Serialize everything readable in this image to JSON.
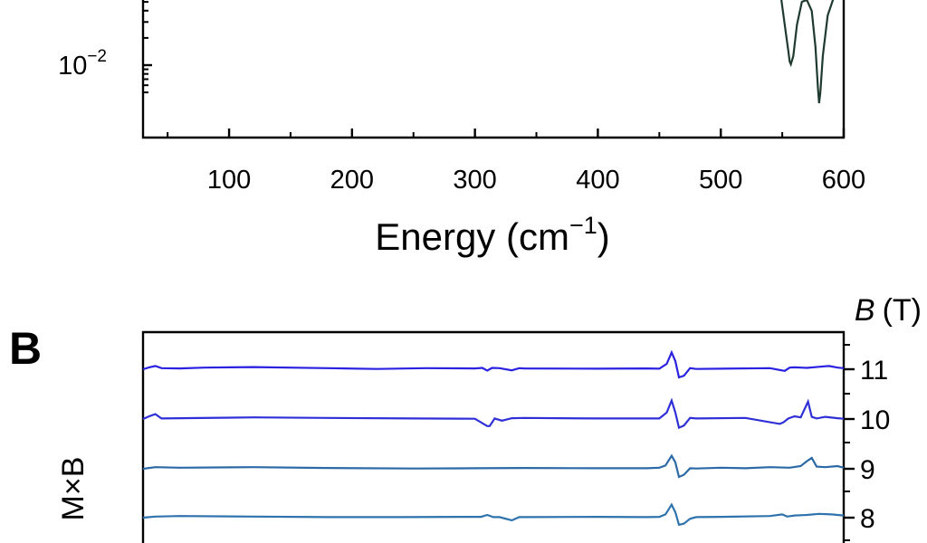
{
  "chart_data": [
    {
      "type": "line",
      "panel_label": "",
      "xlabel_main": "Energy (cm",
      "xlabel_sup": "−1",
      "xlabel_close": ")",
      "xlim": [
        30,
        600
      ],
      "x_tick_values": [
        100,
        200,
        300,
        400,
        500,
        600
      ],
      "x_tick_labels": [
        "100",
        "200",
        "300",
        "400",
        "500",
        "600"
      ],
      "y_scale": "log",
      "y_tick_base": "10",
      "y_tick_exp": "−2",
      "line_color": "#1f3a2e",
      "series": [
        {
          "x": [
            548,
            552,
            555,
            556,
            557,
            559,
            562,
            566,
            570,
            574,
            577,
            579,
            580,
            581,
            583,
            587,
            592,
            596,
            600
          ],
          "y_log10": [
            -1.15,
            -1.55,
            -1.85,
            -1.96,
            -1.99,
            -1.9,
            -1.55,
            -1.3,
            -1.28,
            -1.4,
            -1.8,
            -2.25,
            -2.42,
            -2.3,
            -1.9,
            -1.45,
            -1.25,
            -1.18,
            -1.15
          ]
        }
      ]
    },
    {
      "type": "line",
      "panel_label": "B",
      "xlim": [
        30,
        600
      ],
      "right_axis_title_symbol": "B",
      "right_axis_title_unit": "(T)",
      "left_label_partial": "M×B",
      "series": [
        {
          "name": "11",
          "color": "#2a22e0",
          "x": [
            30,
            35,
            40,
            45,
            60,
            80,
            120,
            180,
            220,
            260,
            300,
            306,
            310,
            314,
            320,
            330,
            336,
            340,
            400,
            440,
            450,
            456,
            460,
            463,
            466,
            470,
            475,
            480,
            500,
            540,
            552,
            556,
            560,
            570,
            580,
            588,
            595,
            600
          ],
          "y": [
            0,
            0.35,
            0.6,
            0.2,
            0.15,
            0.3,
            0.4,
            0.2,
            0.05,
            0.2,
            0.15,
            0.25,
            -0.25,
            0.25,
            0.2,
            -0.2,
            0.2,
            0.15,
            0.1,
            0.15,
            0.1,
            1.0,
            3.1,
            1.5,
            -1.5,
            -1.2,
            0.2,
            0.05,
            0.1,
            0.2,
            -0.3,
            0.3,
            0.35,
            0.25,
            0.45,
            0.6,
            0.3,
            0.2
          ]
        },
        {
          "name": "10",
          "color": "#2f2fd8",
          "x": [
            30,
            35,
            40,
            45,
            60,
            120,
            180,
            250,
            300,
            310,
            312,
            316,
            322,
            330,
            340,
            400,
            440,
            450,
            456,
            460,
            463,
            466,
            470,
            475,
            480,
            520,
            548,
            551,
            555,
            560,
            565,
            571,
            574,
            578,
            585,
            595,
            600
          ],
          "y": [
            0,
            0.5,
            0.9,
            0.1,
            0.15,
            0.3,
            0.2,
            0.1,
            0.05,
            -1.3,
            -1.3,
            0.1,
            -0.3,
            0.15,
            0.2,
            0.1,
            0.1,
            0.1,
            1.2,
            3.4,
            1.2,
            -1.6,
            -1.2,
            0.2,
            0.1,
            0.2,
            -0.9,
            -0.6,
            0.1,
            0.5,
            0.3,
            3.2,
            0.4,
            0.1,
            0.4,
            0.15,
            0.05
          ]
        },
        {
          "name": "9",
          "color": "#2b6aa6",
          "x": [
            30,
            40,
            60,
            120,
            180,
            250,
            300,
            340,
            400,
            440,
            450,
            455,
            460,
            463,
            466,
            470,
            475,
            480,
            500,
            520,
            540,
            556,
            565,
            570,
            574,
            578,
            585,
            595,
            600
          ],
          "y": [
            0,
            0.3,
            0.2,
            0.3,
            0.15,
            0.05,
            0.1,
            0.15,
            0.1,
            0.1,
            0.2,
            0.6,
            2.4,
            1.2,
            -1.5,
            -1.1,
            0.1,
            0.05,
            0.2,
            0.1,
            0.3,
            0.2,
            0.5,
            1.4,
            2.0,
            0.4,
            0.3,
            0.5,
            0.2
          ]
        },
        {
          "name": "8",
          "color": "#2e73ad",
          "x": [
            30,
            40,
            60,
            120,
            180,
            240,
            290,
            305,
            310,
            315,
            320,
            330,
            336,
            340,
            400,
            440,
            450,
            455,
            460,
            463,
            466,
            470,
            475,
            480,
            500,
            540,
            550,
            554,
            560,
            570,
            580,
            590,
            600
          ],
          "y": [
            0,
            0.2,
            0.3,
            0.2,
            0.1,
            0.1,
            0.15,
            0.15,
            0.5,
            0.1,
            0.1,
            -0.5,
            0.1,
            0.1,
            0.15,
            0.1,
            0.15,
            0.6,
            2.4,
            1.0,
            -1.3,
            -1.1,
            -0.2,
            0.1,
            0.15,
            0.3,
            0.6,
            0.2,
            0.4,
            0.5,
            0.7,
            0.6,
            0.4
          ]
        }
      ],
      "right_tick_labels": [
        "11",
        "10",
        "9",
        "8"
      ]
    }
  ]
}
